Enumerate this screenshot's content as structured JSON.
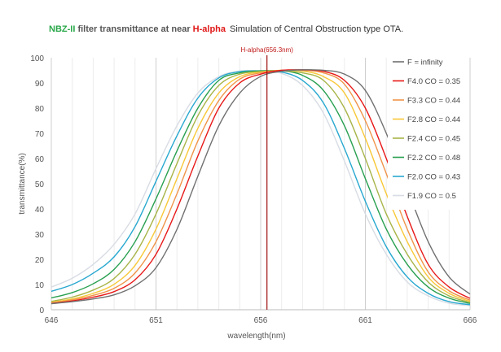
{
  "title": {
    "part1": "NBZ-II",
    "part2": " filter transmittance at near ",
    "part3": "H-alpha",
    "subtitle": "Simulation of Central Obstruction type OTA."
  },
  "chart_data": {
    "type": "line",
    "xlabel": "wavelength(nm)",
    "ylabel": "transmittance(%)",
    "xlim": [
      646,
      666
    ],
    "ylim": [
      0,
      100
    ],
    "x_ticks": [
      646,
      651,
      656,
      661,
      666
    ],
    "y_ticks": [
      0,
      10,
      20,
      30,
      40,
      50,
      60,
      70,
      80,
      90,
      100
    ],
    "grid": "vertical-major",
    "legend_position": "right",
    "annotation": {
      "label": "H-alpha(656.3nm)",
      "x": 656.3
    },
    "series": [
      {
        "name": "F = infinity",
        "color": "#707070",
        "x": [
          646,
          647,
          648,
          649,
          650,
          651,
          652,
          653,
          654,
          655,
          656,
          657,
          658,
          659,
          660,
          661,
          662,
          663,
          664,
          665,
          666
        ],
        "y": [
          2.4,
          3.2,
          4.3,
          5.9,
          9.5,
          16.7,
          31.9,
          53,
          73,
          86,
          92.6,
          94.6,
          95.2,
          95,
          93.5,
          87,
          70,
          48,
          27,
          13,
          6.2
        ]
      },
      {
        "name": "F4.0 CO = 0.35",
        "color": "#e81818",
        "x": [
          646,
          647,
          648,
          649,
          650,
          651,
          652,
          653,
          654,
          655,
          656,
          657,
          658,
          659,
          660,
          661,
          662,
          663,
          664,
          665,
          666
        ],
        "y": [
          2.5,
          3.5,
          5,
          7.2,
          11.9,
          22,
          40,
          61,
          80,
          90,
          93.5,
          95,
          95.2,
          94.6,
          91,
          80,
          60,
          37,
          18,
          9,
          4.5
        ]
      },
      {
        "name": "F3.3 CO = 0.44",
        "color": "#f0944a",
        "x": [
          646,
          647,
          648,
          649,
          650,
          651,
          652,
          653,
          654,
          655,
          656,
          657,
          658,
          659,
          660,
          661,
          662,
          663,
          664,
          665,
          666
        ],
        "y": [
          2.7,
          3.9,
          5.7,
          8.5,
          14.6,
          27,
          46,
          67,
          83,
          91.5,
          94,
          95,
          95,
          94,
          89.5,
          75,
          54,
          32,
          15,
          7.5,
          3.8
        ]
      },
      {
        "name": "F2.8 CO = 0.44",
        "color": "#f8c838",
        "x": [
          646,
          647,
          648,
          649,
          650,
          651,
          652,
          653,
          654,
          655,
          656,
          657,
          658,
          659,
          660,
          661,
          662,
          663,
          664,
          665,
          666
        ],
        "y": [
          2.9,
          4.3,
          6.5,
          10.1,
          17.6,
          32,
          52,
          72,
          86,
          92.5,
          94.3,
          95,
          94.7,
          92.5,
          86,
          68,
          46,
          27,
          13,
          6.5,
          3.3
        ]
      },
      {
        "name": "F2.4 CO = 0.45",
        "color": "#a8b448",
        "x": [
          646,
          647,
          648,
          649,
          650,
          651,
          652,
          653,
          654,
          655,
          656,
          657,
          658,
          659,
          660,
          661,
          662,
          663,
          664,
          665,
          666
        ],
        "y": [
          3.3,
          5,
          7.8,
          12.4,
          22,
          38,
          58,
          77,
          89,
          93.5,
          94.5,
          94.8,
          94,
          91,
          80,
          60,
          38,
          22,
          11,
          5.5,
          2.9
        ]
      },
      {
        "name": "F2.2 CO = 0.48",
        "color": "#28a050",
        "x": [
          646,
          647,
          648,
          649,
          650,
          651,
          652,
          653,
          654,
          655,
          656,
          657,
          658,
          659,
          660,
          661,
          662,
          663,
          664,
          665,
          666
        ],
        "y": [
          4.7,
          6.8,
          10.3,
          16,
          27,
          44,
          63,
          80,
          91,
          94,
          94.8,
          94.8,
          93,
          87,
          73,
          52,
          32,
          18,
          9,
          4.6,
          2.5
        ]
      },
      {
        "name": "F2.0 CO = 0.43",
        "color": "#28a8d0",
        "x": [
          646,
          647,
          648,
          649,
          650,
          651,
          652,
          653,
          654,
          655,
          656,
          657,
          658,
          659,
          660,
          661,
          662,
          663,
          664,
          665,
          666
        ],
        "y": [
          7.3,
          10,
          14.5,
          21,
          33,
          51,
          69,
          84,
          92,
          94.5,
          94.8,
          94.3,
          91,
          82,
          64,
          43,
          25,
          13,
          6.5,
          3.2,
          2
        ]
      },
      {
        "name": "F1.9 CO = 0.5",
        "color": "#d8dce4",
        "x": [
          646,
          647,
          648,
          649,
          650,
          651,
          652,
          653,
          654,
          655,
          656,
          657,
          658,
          659,
          660,
          661,
          662,
          663,
          664,
          665,
          666
        ],
        "y": [
          9,
          12.5,
          18,
          26,
          38,
          56,
          73,
          86,
          92.5,
          94.7,
          94.7,
          93.8,
          89,
          78,
          59,
          38,
          22,
          11,
          5.5,
          2.6,
          1.6
        ]
      }
    ]
  }
}
